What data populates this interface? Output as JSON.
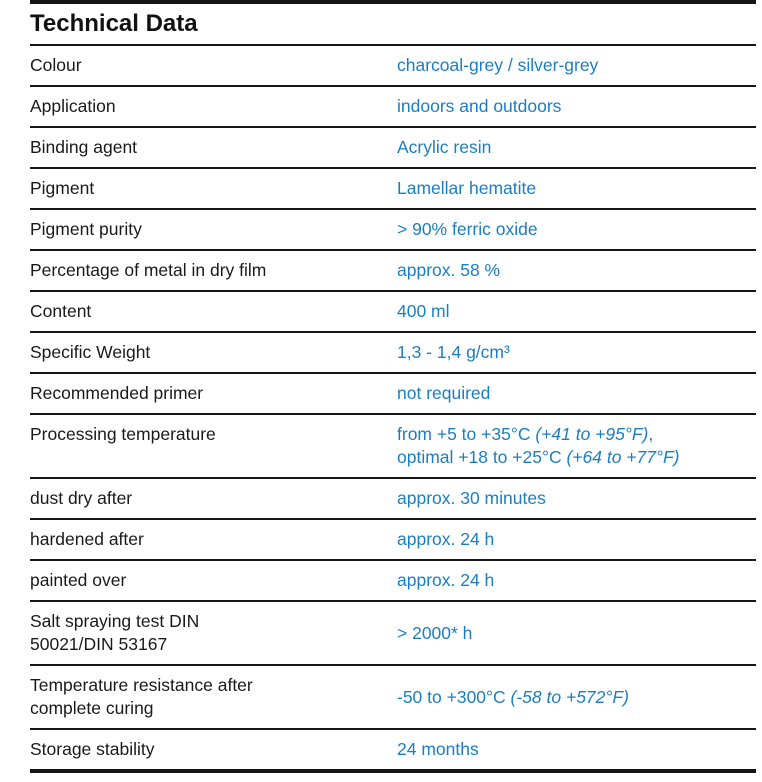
{
  "title": "Technical Data",
  "colors": {
    "value_blue": "#1b7ec4",
    "text_black": "#1a1a1a",
    "rule_black": "#161616"
  },
  "table": {
    "columns": [
      "property",
      "value"
    ],
    "rows": [
      {
        "label": "Colour",
        "value": [
          {
            "t": "charcoal-grey / silver-grey"
          }
        ]
      },
      {
        "label": "Application",
        "value": [
          {
            "t": "indoors and outdoors"
          }
        ]
      },
      {
        "label": "Binding agent",
        "value": [
          {
            "t": "Acrylic resin"
          }
        ]
      },
      {
        "label": "Pigment",
        "value": [
          {
            "t": "Lamellar hematite"
          }
        ]
      },
      {
        "label": "Pigment purity",
        "value": [
          {
            "t": "> 90% ferric oxide"
          }
        ]
      },
      {
        "label": "Percentage of metal in dry film",
        "value": [
          {
            "t": "approx. 58 %"
          }
        ]
      },
      {
        "label": "Content",
        "value": [
          {
            "t": "400 ml"
          }
        ]
      },
      {
        "label": "Specific Weight",
        "value": [
          {
            "t": "1,3 - 1,4 g/cm³"
          }
        ]
      },
      {
        "label": "Recommended primer",
        "value": [
          {
            "t": "not required"
          }
        ]
      },
      {
        "label": "Processing temperature",
        "valign": "top",
        "value": [
          {
            "t": "from +5 to +35°C "
          },
          {
            "t": "(+41 to +95°F)",
            "i": true
          },
          {
            "t": ","
          },
          {
            "br": true
          },
          {
            "t": "optimal +18 to +25°C "
          },
          {
            "t": "(+64 to +77°F)",
            "i": true
          }
        ]
      },
      {
        "label": "dust dry after",
        "value": [
          {
            "t": "approx. 30 minutes"
          }
        ]
      },
      {
        "label": "hardened after",
        "value": [
          {
            "t": "approx. 24 h"
          }
        ]
      },
      {
        "label": "painted over",
        "value": [
          {
            "t": "approx. 24 h"
          }
        ]
      },
      {
        "label": "Salt spraying test DIN\n50021/DIN 53167",
        "value": [
          {
            "t": "> 2000* h"
          }
        ]
      },
      {
        "label": "Temperature resistance after\ncomplete curing",
        "value": [
          {
            "t": "-50 to +300°C "
          },
          {
            "t": "(-58 to +572°F)",
            "i": true
          }
        ]
      },
      {
        "label": "Storage stability",
        "value": [
          {
            "t": "24 months"
          }
        ]
      }
    ]
  }
}
